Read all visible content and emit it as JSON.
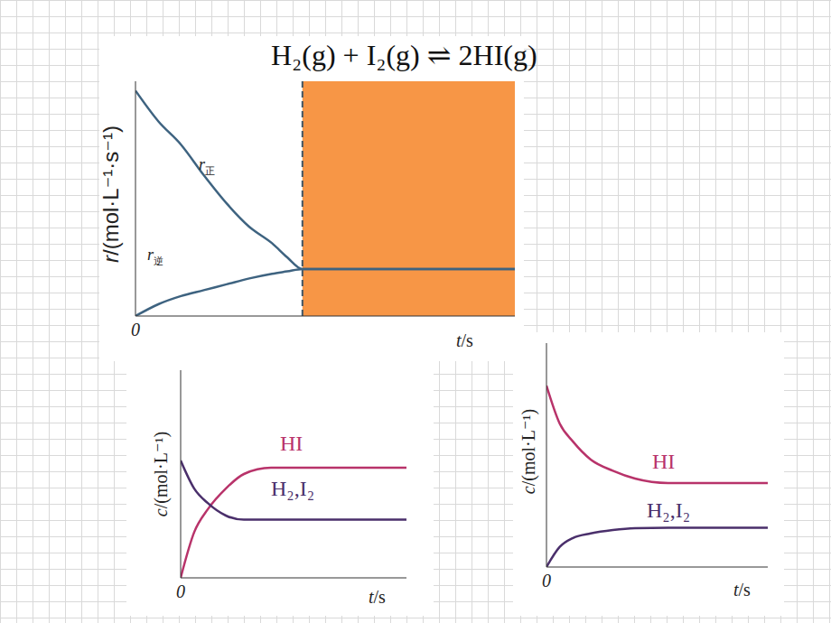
{
  "title": "H₂(g) + I₂(g) ⇌ 2HI(g)",
  "chart_data": [
    {
      "type": "line",
      "x_label": "t/s",
      "y_label": "r/(mol·L⁻¹·s⁻¹)",
      "x": [
        0,
        0.6,
        1.2,
        1.8,
        2.4,
        3.0,
        3.6,
        4.0,
        4.4,
        6,
        8,
        10
      ],
      "series": [
        {
          "name": "r正",
          "color": "#3e6380",
          "values": [
            9.6,
            8.3,
            7.3,
            6.0,
            4.8,
            3.8,
            3.1,
            2.5,
            2.0,
            2.0,
            2.0,
            2.0
          ]
        },
        {
          "name": "r逆",
          "color": "#3e6380",
          "values": [
            0,
            0.5,
            0.85,
            1.1,
            1.35,
            1.6,
            1.8,
            1.9,
            2.0,
            2.0,
            2.0,
            2.0
          ]
        }
      ],
      "xlim": [
        0,
        10
      ],
      "ylim": [
        0,
        10
      ],
      "xticks": [
        0
      ],
      "yticks": [],
      "tick_labels": "x",
      "equilibrium_t": 4.4,
      "shaded_region": {
        "x": [
          4.4,
          10
        ],
        "color": "#f79646"
      }
    },
    {
      "type": "line",
      "x_label": "t/s",
      "y_label": "c/(mol·L⁻¹)",
      "x": [
        0,
        0.6,
        1.2,
        2,
        2.8,
        4,
        10
      ],
      "series": [
        {
          "name": "HI",
          "color": "#b8336a",
          "values": [
            0,
            2.2,
            3.3,
            4.3,
            5.0,
            5.3,
            5.3
          ]
        },
        {
          "name": "H₂,I₂",
          "color": "#4a2f6b",
          "values": [
            5.65,
            4.3,
            3.6,
            3.0,
            2.8,
            2.8,
            2.8
          ]
        }
      ],
      "xlim": [
        0,
        10
      ],
      "ylim": [
        0,
        10
      ],
      "xticks": [
        0
      ],
      "yticks": [],
      "tick_labels": "x"
    },
    {
      "type": "line",
      "x_label": "t/s",
      "y_label": "c/(mol·L⁻¹)",
      "x": [
        0,
        0.6,
        1.2,
        2,
        3,
        4,
        5.5,
        10
      ],
      "series": [
        {
          "name": "HI",
          "color": "#b8336a",
          "values": [
            8.1,
            6.4,
            5.6,
            4.8,
            4.3,
            3.95,
            3.75,
            3.75
          ]
        },
        {
          "name": "H₂,I₂",
          "color": "#4a2f6b",
          "values": [
            0,
            0.9,
            1.3,
            1.5,
            1.65,
            1.73,
            1.75,
            1.75
          ]
        }
      ],
      "xlim": [
        0,
        10
      ],
      "ylim": [
        0,
        10
      ],
      "xticks": [
        0
      ],
      "yticks": [],
      "tick_labels": "x"
    }
  ]
}
